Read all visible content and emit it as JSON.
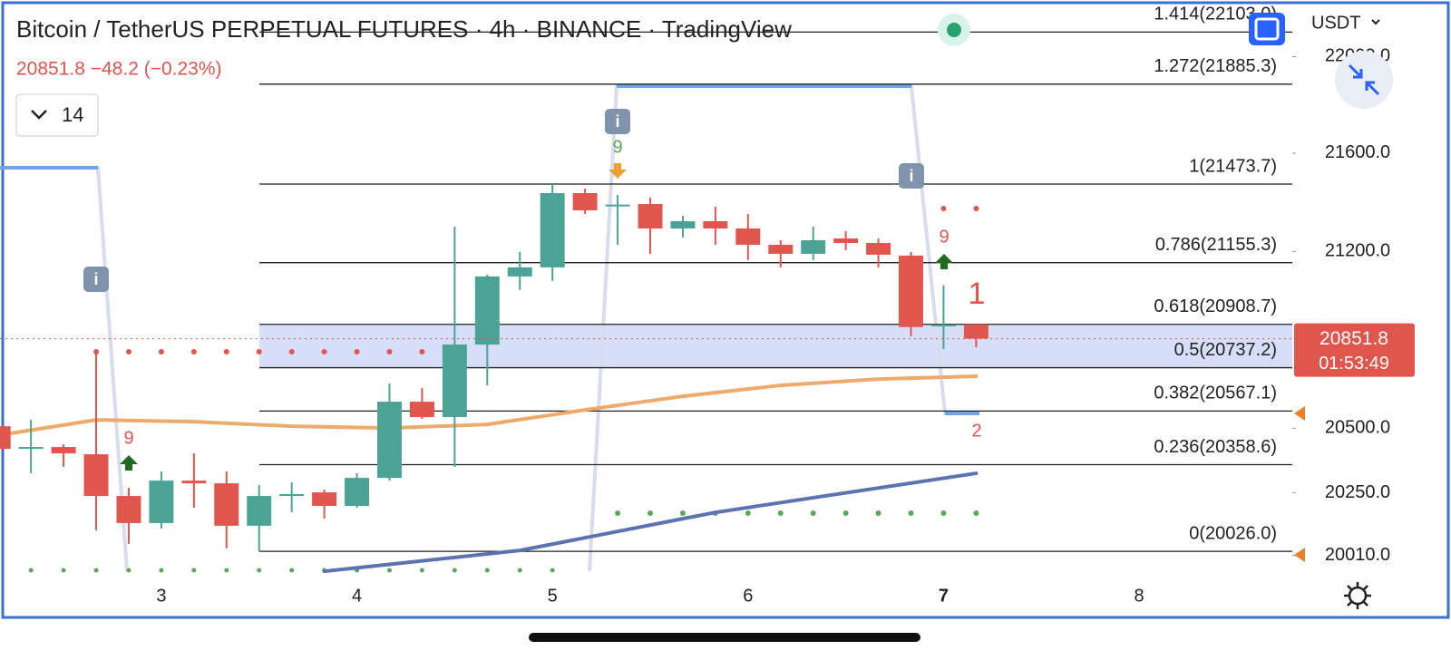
{
  "header": {
    "title": "Bitcoin / TetherUS PERPETUAL FUTURES · 4h · BINANCE · TradingView",
    "quote": "20851.8 −48.2 (−0.23%)",
    "interval_menu": "14",
    "currency": "USDT"
  },
  "chart_data": {
    "type": "candlestick",
    "log_scale": true,
    "x": [
      0,
      1,
      2,
      3,
      4,
      5,
      6,
      7,
      8,
      9,
      10,
      11,
      12,
      13,
      14,
      15,
      16,
      17,
      18,
      19,
      20,
      21,
      22,
      23,
      24,
      25,
      26,
      27,
      28,
      29,
      30
    ],
    "open": [
      20507.7,
      20423.4,
      20426.9,
      20398.8,
      20237.8,
      20133.9,
      20296.9,
      20286.5,
      20123.6,
      20240.0,
      20251.7,
      20199.7,
      20307.4,
      20603.6,
      20543.3,
      20828.5,
      21100.0,
      21136.3,
      21436.7,
      21385.0,
      21392.4,
      21293.2,
      21322.5,
      21293.2,
      21227.4,
      21190.9,
      21252.9,
      21234.7,
      21183.6,
      20905.0,
      20908.7
    ],
    "high": [
      20525.5,
      20532.6,
      20437.4,
      20792.7,
      20269.1,
      20332.4,
      20402.3,
      20332.4,
      20279.5,
      20290.0,
      20262.1,
      20325.4,
      20674.7,
      20656.9,
      21300.5,
      21107.2,
      21198.2,
      21473.7,
      21455.2,
      21429.3,
      21418.2,
      21344.5,
      21381.3,
      21351.9,
      21245.6,
      21300.5,
      21282.2,
      21252.9,
      21198.2,
      21064.0,
      20908.7
    ],
    "low": [
      20419.9,
      20325.4,
      20349.8,
      20106.4,
      20054.5,
      20113.2,
      20192.8,
      20037.3,
      20026.0,
      20175.4,
      20151.3,
      20192.8,
      20296.9,
      20536.2,
      20349.8,
      20667.6,
      21045.9,
      21082.0,
      21351.9,
      21227.4,
      21190.9,
      21256.6,
      21227.4,
      21165.4,
      21136.3,
      21165.4,
      21205.5,
      21136.3,
      20862.0,
      20810.6,
      20817.7
    ],
    "close": [
      20419.9,
      20426.9,
      20402.3,
      20237.8,
      20133.9,
      20296.9,
      20286.5,
      20123.6,
      20237.8,
      20244.8,
      20199.7,
      20307.4,
      20603.6,
      20543.3,
      20828.5,
      21100.0,
      21136.3,
      21436.7,
      21366.6,
      21390.0,
      21293.2,
      21322.5,
      21293.2,
      21227.4,
      21190.9,
      21245.6,
      21234.7,
      21187.3,
      20898.0,
      20908.0,
      20851.8
    ],
    "up_color": "#4aa394",
    "down_color": "#e0564f",
    "xlim": [
      0.05,
      39.7
    ],
    "xticks": [
      {
        "value": 5,
        "label": "3"
      },
      {
        "value": 11,
        "label": "4"
      },
      {
        "value": 17,
        "label": "5"
      },
      {
        "value": 23,
        "label": "6"
      },
      {
        "value": 29,
        "label": "7"
      },
      {
        "value": 35,
        "label": "8"
      }
    ],
    "ylim": [
      19882,
      22238
    ],
    "yticks": [
      {
        "value": 22000,
        "label": "22000.0"
      },
      {
        "value": 21600,
        "label": "21600.0"
      },
      {
        "value": 21200,
        "label": "21200.0"
      },
      {
        "value": 20500,
        "label": "20500.0"
      },
      {
        "value": 20250,
        "label": "20250.0"
      },
      {
        "value": 20010,
        "label": "20010.0"
      }
    ],
    "fib_levels": [
      {
        "label": "1.414(22103.0)",
        "value": 22103.0
      },
      {
        "label": "1.272(21885.3)",
        "value": 21885.3
      },
      {
        "label": "1(21473.7)",
        "value": 21473.7
      },
      {
        "label": "0.786(21155.3)",
        "value": 21155.3
      },
      {
        "label": "0.618(20908.7)",
        "value": 20908.7
      },
      {
        "label": "0.5(20737.2)",
        "value": 20737.2
      },
      {
        "label": "0.382(20567.1)",
        "value": 20567.1
      },
      {
        "label": "0.236(20358.6)",
        "value": 20358.6
      },
      {
        "label": "0(20026.0)",
        "value": 20026.0
      }
    ],
    "indicators": [
      {
        "color": "#eeaa6a",
        "x": [
          0,
          3,
          6,
          9,
          12,
          15,
          18,
          21,
          24,
          27,
          30
        ],
        "values": [
          20472.6,
          20532.6,
          20525.5,
          20507.7,
          20500.7,
          20514.8,
          20571.4,
          20624.9,
          20667.6,
          20692.5,
          20703.3
        ]
      },
      {
        "color": "#5b73b0",
        "x": [
          10,
          16,
          22,
          30
        ],
        "values": [
          19950.1,
          20029.4,
          20174.7,
          20325.1
        ]
      }
    ],
    "annotations": [
      "9",
      "9",
      "9",
      "1",
      "2"
    ],
    "price_tag": "20851.8",
    "countdown": "01:53:49"
  }
}
